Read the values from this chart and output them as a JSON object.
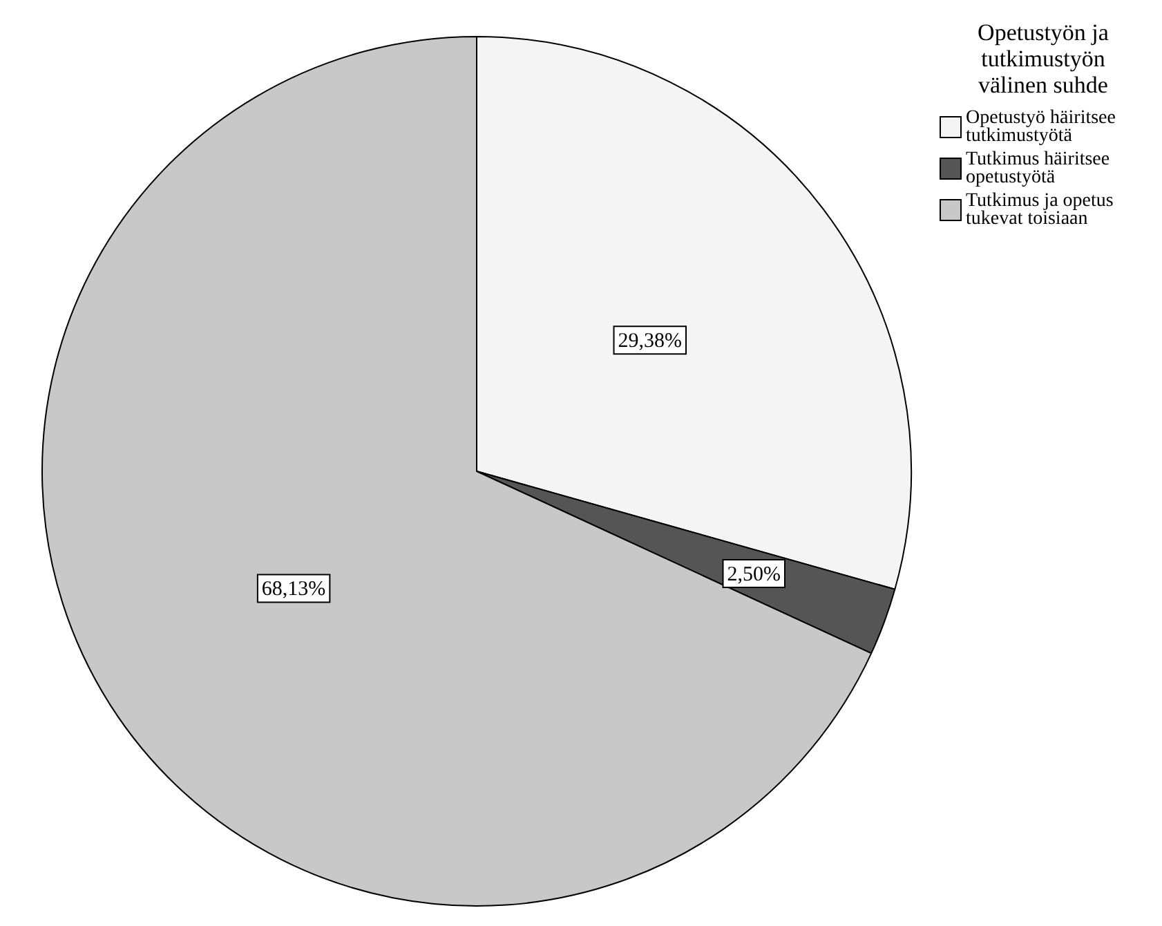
{
  "chart_data": {
    "type": "pie",
    "legend_title": "Opetustyön ja tutkimustyön välinen suhde",
    "categories": [
      "Opetustyö häiritsee tutkimustyötä",
      "Tutkimus häiritsee opetustyötä",
      "Tutkimus ja opetus tukevat toisiaan"
    ],
    "values": [
      29.38,
      2.5,
      68.13
    ],
    "value_labels": [
      "29,38%",
      "2,50%",
      "68,13%"
    ],
    "colors": [
      "#f4f4f4",
      "#555555",
      "#c8c8c8"
    ],
    "legend": "top right"
  }
}
